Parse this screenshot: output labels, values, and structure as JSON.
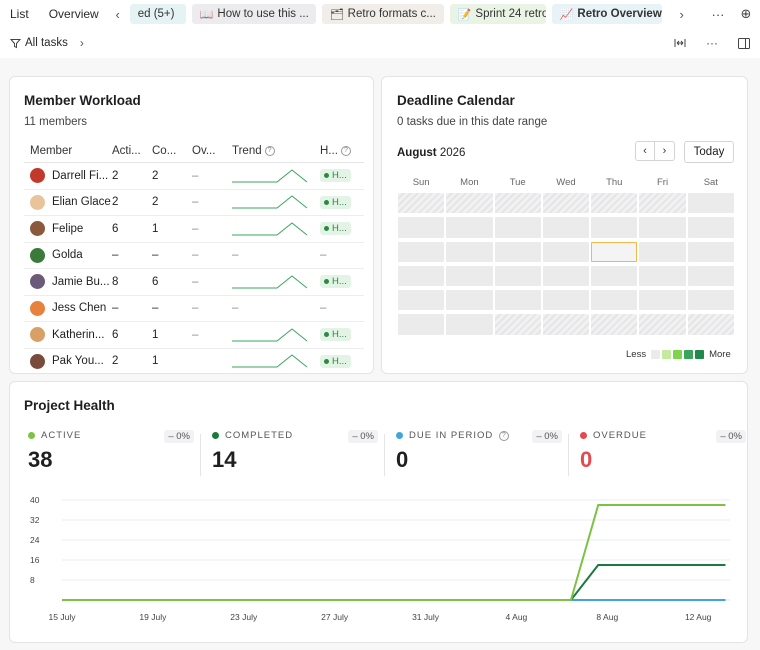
{
  "topbar": {
    "tabs": [
      {
        "label": "List"
      },
      {
        "label": "Overview"
      }
    ],
    "prev_glyph": "‹",
    "next_glyph": "›",
    "doc_tabs": [
      {
        "label": "ed (5+)",
        "glyph": ""
      },
      {
        "label": "How to use this ...",
        "glyph": "📖"
      },
      {
        "label": "Retro formats c...",
        "glyph": "🗂"
      },
      {
        "label": "Sprint 24 retro",
        "glyph": "📝"
      },
      {
        "label": "Retro Overview",
        "glyph": "📈"
      }
    ],
    "more_glyph": "···",
    "add_glyph": "⊕"
  },
  "filterbar": {
    "filter_label": "All tasks",
    "chev": "›",
    "more_glyph": "···"
  },
  "workload": {
    "title": "Member Workload",
    "subtitle": "11 members",
    "columns": {
      "member": "Member",
      "active": "Acti...",
      "completed": "Co...",
      "overdue": "Ov...",
      "trend": "Trend",
      "health": "H..."
    },
    "rows": [
      {
        "name": "Darrell Fi...",
        "active": "2",
        "completed": "2",
        "overdue": "–",
        "trend": [
          0,
          0,
          0,
          0,
          1,
          0
        ],
        "health": "H...",
        "avatar": "#c0392b"
      },
      {
        "name": "Elian Glace",
        "active": "2",
        "completed": "2",
        "overdue": "–",
        "trend": [
          0,
          0,
          0,
          0,
          1,
          0
        ],
        "health": "H...",
        "avatar": "#e9c49b"
      },
      {
        "name": "Felipe",
        "active": "6",
        "completed": "1",
        "overdue": "–",
        "trend": [
          0,
          0,
          0,
          0,
          1,
          0
        ],
        "health": "H...",
        "avatar": "#8b5a3c"
      },
      {
        "name": "Golda",
        "active": "–",
        "completed": "–",
        "overdue": "–",
        "trend": null,
        "trend_text": "–",
        "health": "–",
        "avatar": "#3b7a3b"
      },
      {
        "name": "Jamie Bu...",
        "active": "8",
        "completed": "6",
        "overdue": "–",
        "trend": [
          0,
          0,
          0,
          0,
          1,
          0
        ],
        "health": "H...",
        "avatar": "#6b5a7a"
      },
      {
        "name": "Jess Chen",
        "active": "–",
        "completed": "–",
        "overdue": "–",
        "trend": null,
        "trend_text": "–",
        "health": "–",
        "avatar": "#e7813c"
      },
      {
        "name": "Katherin...",
        "active": "6",
        "completed": "1",
        "overdue": "–",
        "trend": [
          0,
          0,
          0,
          0,
          1,
          0
        ],
        "health": "H...",
        "avatar": "#d9a066"
      },
      {
        "name": "Pak You...",
        "active": "2",
        "completed": "1",
        "overdue": "",
        "trend": [
          0,
          0,
          0,
          0,
          1,
          0
        ],
        "health": "H...",
        "avatar": "#7a4b3a"
      }
    ]
  },
  "calendar": {
    "title": "Deadline Calendar",
    "subtitle": "0 tasks due in this date range",
    "month": "August",
    "year": "2026",
    "prev": "‹",
    "next": "›",
    "today_label": "Today",
    "days": [
      "Sun",
      "Mon",
      "Tue",
      "Wed",
      "Thu",
      "Fri",
      "Sat"
    ],
    "weeks": [
      [
        "out",
        "out",
        "out",
        "out",
        "out",
        "out",
        "in"
      ],
      [
        "in",
        "in",
        "in",
        "in",
        "in",
        "in",
        "in"
      ],
      [
        "in",
        "in",
        "in",
        "in",
        "today",
        "in",
        "in"
      ],
      [
        "in",
        "in",
        "in",
        "in",
        "in",
        "in",
        "in"
      ],
      [
        "in",
        "in",
        "in",
        "in",
        "in",
        "in",
        "in"
      ],
      [
        "in",
        "in",
        "out",
        "out",
        "out",
        "out",
        "out"
      ]
    ],
    "legend_less": "Less",
    "legend_more": "More",
    "legend_colors": [
      "#ebebec",
      "#c4eaa0",
      "#7fd34e",
      "#3aa55d",
      "#1f8a4c"
    ]
  },
  "health": {
    "title": "Project Health",
    "stats": [
      {
        "label": "ACTIVE",
        "value": "38",
        "change": "– 0%",
        "color": "#7dc242",
        "value_color": "#1f1f22"
      },
      {
        "label": "COMPLETED",
        "value": "14",
        "change": "– 0%",
        "color": "#1a7a3c",
        "value_color": "#1f1f22"
      },
      {
        "label": "DUE IN PERIOD",
        "value": "0",
        "change": "– 0%",
        "color": "#3fa7d6",
        "value_color": "#1f1f22",
        "info": true
      },
      {
        "label": "OVERDUE",
        "value": "0",
        "change": "– 0%",
        "color": "#e5484d",
        "value_color": "#e5484d"
      }
    ]
  },
  "chart_data": {
    "type": "line",
    "x": [
      "15 July",
      "19 July",
      "23 July",
      "27 July",
      "31 July",
      "4 Aug",
      "8 Aug",
      "12 Aug"
    ],
    "yticks": [
      8,
      16,
      24,
      32,
      40
    ],
    "ylim": [
      0,
      40
    ],
    "series": [
      {
        "name": "Active",
        "color": "#7dc242",
        "points": [
          [
            0,
            0
          ],
          [
            5.6,
            0
          ],
          [
            5.9,
            38
          ],
          [
            7.3,
            38
          ]
        ]
      },
      {
        "name": "Completed",
        "color": "#1a7a3c",
        "points": [
          [
            0,
            0
          ],
          [
            5.6,
            0
          ],
          [
            5.9,
            14
          ],
          [
            7.3,
            14
          ]
        ]
      },
      {
        "name": "Due in period",
        "color": "#3fa7d6",
        "points": [
          [
            0,
            0
          ],
          [
            7.3,
            0
          ]
        ]
      },
      {
        "name": "Overdue",
        "color": "#f2a3a3",
        "points": [
          [
            0,
            0
          ],
          [
            7.3,
            0
          ]
        ]
      }
    ]
  }
}
